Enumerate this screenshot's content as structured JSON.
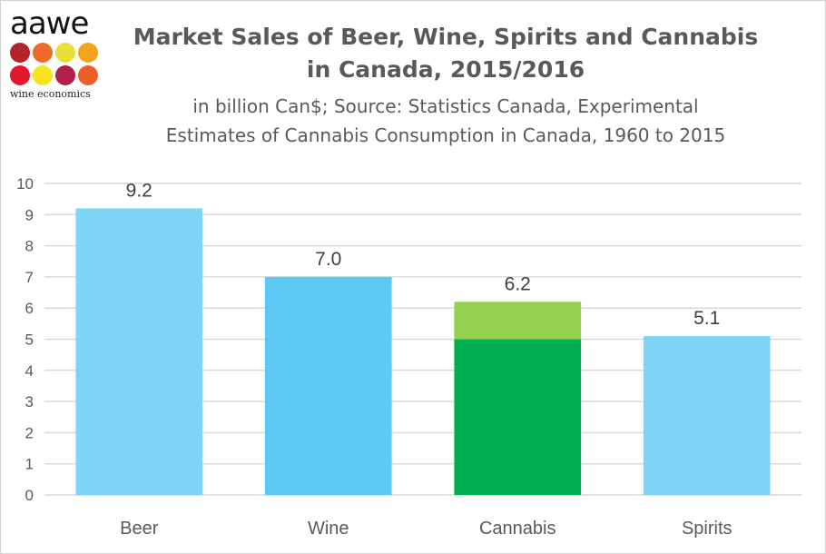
{
  "logo": {
    "word": "aawe",
    "tagline": "wine economics",
    "dot_colors": [
      "#b5232a",
      "#ec6a2a",
      "#e7e03c",
      "#f4a21f",
      "#e2172a",
      "#f8e31e",
      "#b2204a",
      "#ec5f2d"
    ]
  },
  "title_line1": "Market Sales of Beer, Wine, Spirits and Cannabis",
  "title_line2": "in Canada, 2015/2016",
  "subtitle_line1": "in billion Can$; Source: Statistics Canada, Experimental",
  "subtitle_line2": "Estimates of Cannabis Consumption in Canada, 1960 to 2015",
  "chart_data": {
    "type": "bar",
    "stacked": true,
    "categories": [
      "Beer",
      "Wine",
      "Cannabis",
      "Spirits"
    ],
    "segments": [
      [
        {
          "value": 9.2,
          "color": "#7dd4f6"
        }
      ],
      [
        {
          "value": 7.0,
          "color": "#5bc9f3"
        }
      ],
      [
        {
          "value": 5.0,
          "color": "#00b050"
        },
        {
          "value": 1.2,
          "color": "#92d050"
        }
      ],
      [
        {
          "value": 5.1,
          "color": "#7dd4f6"
        }
      ]
    ],
    "totals": [
      9.2,
      7.0,
      6.2,
      5.1
    ],
    "data_labels": [
      "9.2",
      "7.0",
      "6.2",
      "5.1"
    ],
    "ylim": [
      0,
      10
    ],
    "yticks": [
      "0",
      "1",
      "2",
      "3",
      "4",
      "5",
      "6",
      "7",
      "8",
      "9",
      "10"
    ],
    "grid": true,
    "legend": "none"
  }
}
